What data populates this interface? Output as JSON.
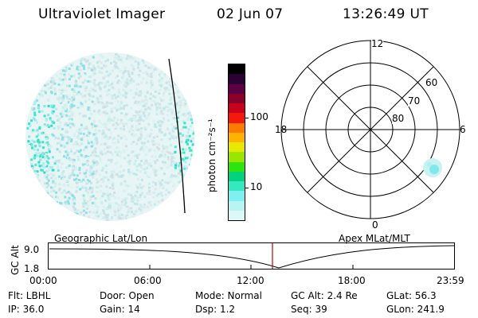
{
  "header": {
    "title": "Ultraviolet Imager",
    "date": "02 Jun 07",
    "time": "13:26:49 UT"
  },
  "colorbar": {
    "unit_label": "photon cm⁻²s⁻¹",
    "ticks": [
      "100",
      "10"
    ],
    "colors": [
      "#000000",
      "#2b0035",
      "#5a0043",
      "#8a0028",
      "#c8001c",
      "#f21a0e",
      "#ff7a00",
      "#ffb300",
      "#e6e800",
      "#9be600",
      "#2ee40f",
      "#00d27f",
      "#35e8c0",
      "#7ff0f0",
      "#b9f4f4",
      "#dcf7f7"
    ]
  },
  "polar_plot": {
    "mlt_labels": {
      "top": "12",
      "left": "18",
      "right": "6",
      "bottom": "0"
    },
    "lat_labels": [
      "60",
      "70",
      "80"
    ]
  },
  "timeline": {
    "left_title": "Geographic Lat/Lon",
    "right_title": "Apex MLat/MLT",
    "y_label": "GC Alt",
    "y_ticks": [
      "9.0",
      "1.8"
    ],
    "x_ticks": [
      "00:00",
      "06:00",
      "12:00",
      "18:00",
      "23:59"
    ],
    "marker_time": "13:26:49"
  },
  "info": {
    "filter": "Flt: LBHL",
    "door": "Door: Open",
    "mode": "Mode: Normal",
    "gc_alt": "GC Alt: 2.4 Re",
    "glat": "GLat:  56.3",
    "ip": "IP: 36.0",
    "gain": "Gain: 14",
    "dsp": "Dsp:    1.2",
    "seq": "Seq: 39",
    "glon": "GLon: 241.9"
  },
  "accent_colors": {
    "marker": "#c00000",
    "aurora_cyan": "#35e8c0",
    "pale_cyan": "#c9f2f2"
  }
}
